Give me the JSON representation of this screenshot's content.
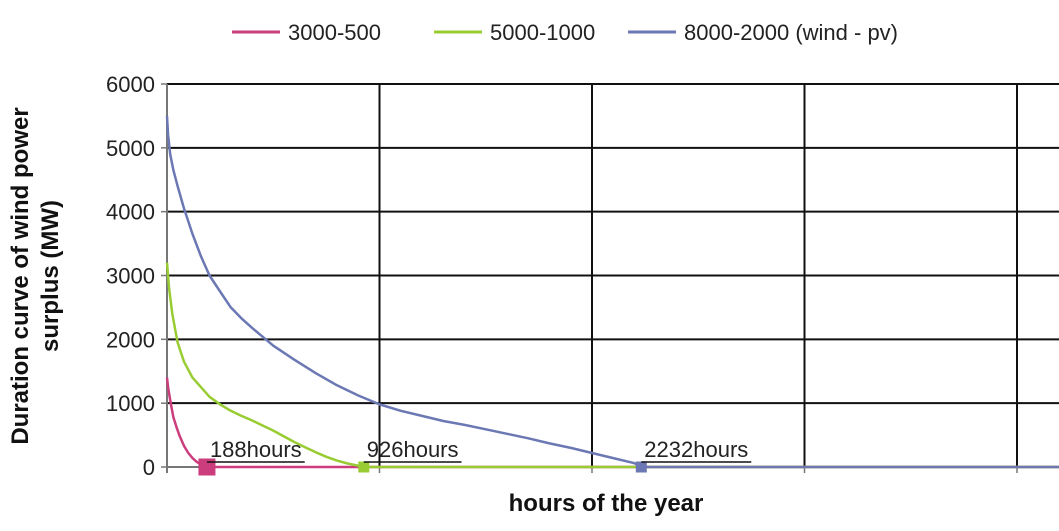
{
  "chart_data": {
    "type": "line",
    "title": "",
    "xlabel": "hours of the year",
    "ylabel": "Duration curve of wind power surplus (MW)",
    "ylim": [
      0,
      6000
    ],
    "xlim": [
      0,
      4200
    ],
    "yticks": [
      "0",
      "1000",
      "2000",
      "3000",
      "4000",
      "5000",
      "6000"
    ],
    "xgrid_hours": [
      1000,
      2000,
      3000,
      4000
    ],
    "grid": true,
    "legend_position": "top",
    "colors": {
      "s1": "#cc3d7e",
      "s2": "#99cc33",
      "s3": "#6b78b4",
      "grid": "#111111",
      "axis": "#777777"
    },
    "series": [
      {
        "name": "3000-500",
        "x": [
          0,
          5,
          10,
          20,
          30,
          45,
          60,
          80,
          100,
          120,
          140,
          160,
          175,
          188,
          4200
        ],
        "y": [
          1400,
          1250,
          1150,
          950,
          780,
          620,
          480,
          330,
          220,
          140,
          80,
          35,
          10,
          0,
          0
        ]
      },
      {
        "name": "5000-1000",
        "x": [
          0,
          10,
          25,
          50,
          80,
          120,
          160,
          200,
          250,
          300,
          350,
          400,
          450,
          500,
          550,
          600,
          650,
          700,
          750,
          800,
          850,
          900,
          926,
          4200
        ],
        "y": [
          3200,
          2800,
          2400,
          1950,
          1650,
          1400,
          1250,
          1100,
          980,
          880,
          800,
          730,
          650,
          570,
          480,
          390,
          310,
          230,
          160,
          100,
          55,
          20,
          0,
          0
        ]
      },
      {
        "name": "8000-2000 (wind - pv)",
        "x": [
          0,
          5,
          15,
          30,
          50,
          80,
          120,
          160,
          200,
          250,
          300,
          350,
          400,
          500,
          600,
          700,
          800,
          900,
          1000,
          1100,
          1200,
          1300,
          1400,
          1500,
          1600,
          1700,
          1800,
          1900,
          2000,
          2100,
          2200,
          2232,
          4200
        ],
        "y": [
          5500,
          5200,
          4900,
          4650,
          4400,
          4050,
          3650,
          3300,
          3000,
          2750,
          2500,
          2330,
          2180,
          1900,
          1680,
          1470,
          1280,
          1120,
          980,
          880,
          800,
          720,
          660,
          590,
          520,
          450,
          370,
          300,
          220,
          140,
          60,
          0,
          0
        ]
      }
    ],
    "annotations": [
      {
        "text": "188hours",
        "x": 188,
        "series": 0
      },
      {
        "text": "926hours",
        "x": 926,
        "series": 1
      },
      {
        "text": "2232hours",
        "x": 2232,
        "series": 2
      }
    ]
  }
}
